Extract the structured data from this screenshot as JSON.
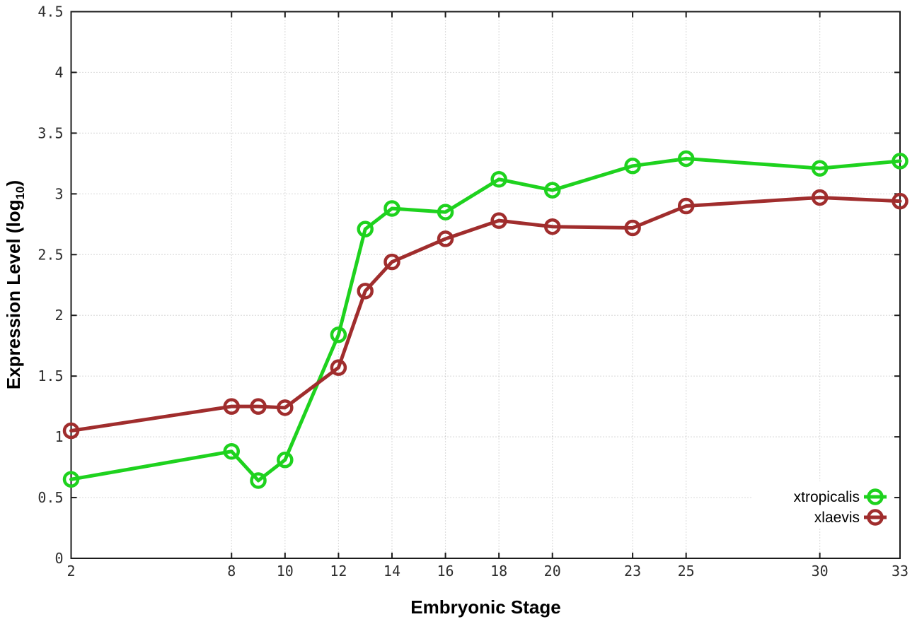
{
  "chart_data": {
    "type": "line",
    "title": "",
    "xlabel": "Embryonic Stage",
    "ylabel": {
      "main": "Expression Level (log",
      "sub": "10",
      "end": ")"
    },
    "x": [
      2,
      8,
      9,
      10,
      12,
      13,
      14,
      16,
      18,
      20,
      23,
      25,
      30,
      33
    ],
    "series": [
      {
        "name": "xtropicalis",
        "color": "#1ed21e",
        "values": [
          0.65,
          0.88,
          0.64,
          0.81,
          1.84,
          2.71,
          2.88,
          2.85,
          3.12,
          3.03,
          3.23,
          3.29,
          3.21,
          3.27
        ]
      },
      {
        "name": "xlaevis",
        "color": "#a02d2d",
        "values": [
          1.05,
          1.25,
          1.25,
          1.24,
          1.57,
          2.2,
          2.44,
          2.63,
          2.78,
          2.73,
          2.72,
          2.9,
          2.97,
          2.94
        ]
      }
    ],
    "x_ticks": [
      2,
      8,
      10,
      12,
      14,
      16,
      18,
      20,
      23,
      25,
      30,
      33
    ],
    "y_ticks": [
      0,
      0.5,
      1,
      1.5,
      2,
      2.5,
      3,
      3.5,
      4,
      4.5
    ],
    "xlim": [
      2,
      33
    ],
    "ylim": [
      0,
      4.5
    ],
    "grid": true,
    "legend_position": "bottom-right",
    "marker": "open-circle",
    "colors": {
      "axis": "#1c1c1c",
      "grid": "#bcbcbc",
      "tick_text": "#2e2e2e",
      "background": "#ffffff"
    }
  }
}
